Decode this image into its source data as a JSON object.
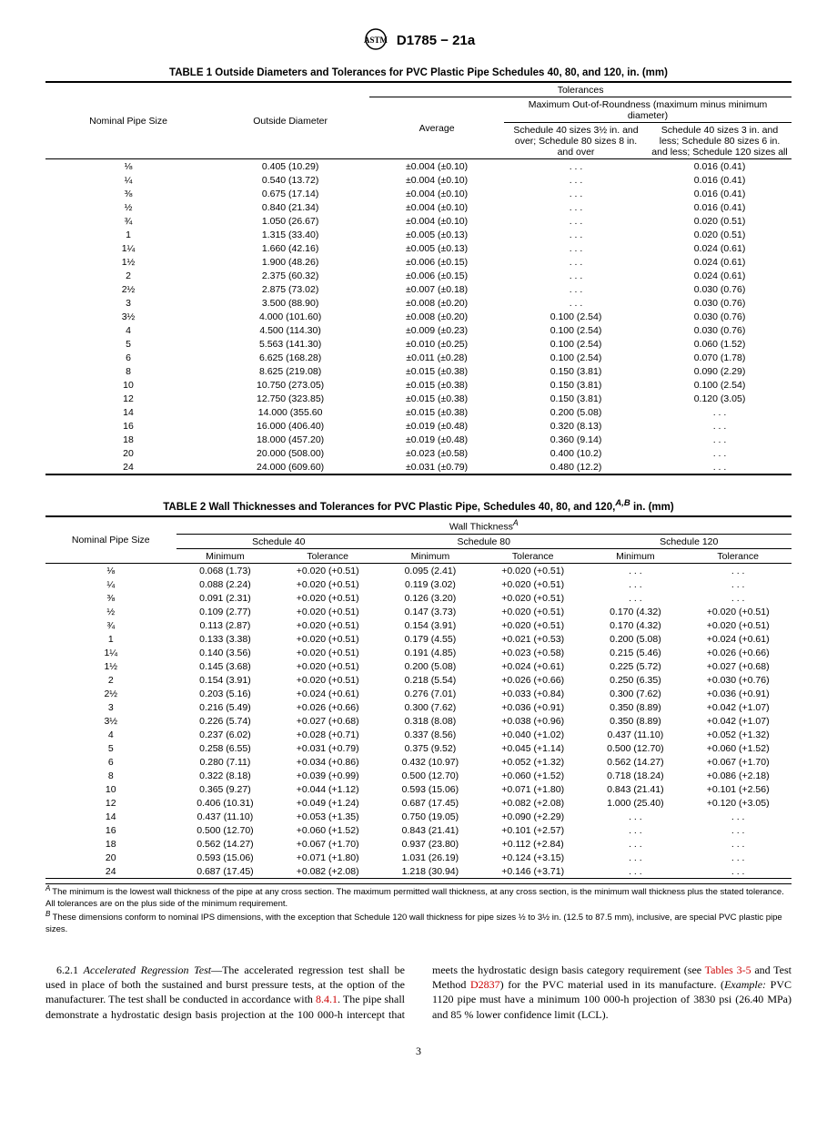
{
  "doc_id": "D1785 − 21a",
  "table1": {
    "title": "TABLE 1 Outside Diameters and Tolerances for PVC Plastic Pipe Schedules 40, 80, and 120, in. (mm)",
    "headers": {
      "c1": "Nominal Pipe Size",
      "c2": "Outside Diameter",
      "tol": "Tolerances",
      "c3": "Average",
      "oor": "Maximum Out-of-Roundness (maximum minus minimum diameter)",
      "c4": "Schedule 40 sizes 3½ in. and over; Schedule 80 sizes 8 in. and over",
      "c5": "Schedule 40 sizes 3 in. and less; Schedule 80 sizes 6 in. and less; Schedule 120 sizes all"
    },
    "rows": [
      [
        "⅛",
        "0.405 (10.29)",
        "±0.004 (±0.10)",
        ". . .",
        "0.016 (0.41)"
      ],
      [
        "¼",
        "0.540 (13.72)",
        "±0.004 (±0.10)",
        ". . .",
        "0.016 (0.41)"
      ],
      [
        "⅜",
        "0.675 (17.14)",
        "±0.004 (±0.10)",
        ". . .",
        "0.016 (0.41)"
      ],
      [
        "½",
        "0.840 (21.34)",
        "±0.004 (±0.10)",
        ". . .",
        "0.016 (0.41)"
      ],
      [
        "¾",
        "1.050 (26.67)",
        "±0.004 (±0.10)",
        ". . .",
        "0.020 (0.51)"
      ],
      [
        "1",
        "1.315 (33.40)",
        "±0.005 (±0.13)",
        ". . .",
        "0.020 (0.51)"
      ],
      [
        "1¼",
        "1.660 (42.16)",
        "±0.005 (±0.13)",
        ". . .",
        "0.024 (0.61)"
      ],
      [
        "1½",
        "1.900 (48.26)",
        "±0.006 (±0.15)",
        ". . .",
        "0.024 (0.61)"
      ],
      [
        "2",
        "2.375 (60.32)",
        "±0.006 (±0.15)",
        ". . .",
        "0.024 (0.61)"
      ],
      [
        "2½",
        "2.875 (73.02)",
        "±0.007 (±0.18)",
        ". . .",
        "0.030 (0.76)"
      ],
      [
        "3",
        "3.500 (88.90)",
        "±0.008 (±0.20)",
        ". . .",
        "0.030 (0.76)"
      ],
      [
        "3½",
        "4.000 (101.60)",
        "±0.008 (±0.20)",
        "0.100 (2.54)",
        "0.030 (0.76)"
      ],
      [
        "4",
        "4.500 (114.30)",
        "±0.009 (±0.23)",
        "0.100 (2.54)",
        "0.030 (0.76)"
      ],
      [
        "5",
        "5.563 (141.30)",
        "±0.010 (±0.25)",
        "0.100 (2.54)",
        "0.060 (1.52)"
      ],
      [
        "6",
        "6.625 (168.28)",
        "±0.011 (±0.28)",
        "0.100 (2.54)",
        "0.070 (1.78)"
      ],
      [
        "8",
        "8.625 (219.08)",
        "±0.015 (±0.38)",
        "0.150 (3.81)",
        "0.090 (2.29)"
      ],
      [
        "10",
        "10.750 (273.05)",
        "±0.015 (±0.38)",
        "0.150 (3.81)",
        "0.100 (2.54)"
      ],
      [
        "12",
        "12.750 (323.85)",
        "±0.015 (±0.38)",
        "0.150 (3.81)",
        "0.120 (3.05)"
      ],
      [
        "14",
        "14.000 (355.60",
        "±0.015 (±0.38)",
        "0.200 (5.08)",
        ". . ."
      ],
      [
        "16",
        "16.000 (406.40)",
        "±0.019 (±0.48)",
        "0.320 (8.13)",
        ". . ."
      ],
      [
        "18",
        "18.000 (457.20)",
        "±0.019 (±0.48)",
        "0.360 (9.14)",
        ". . ."
      ],
      [
        "20",
        "20.000 (508.00)",
        "±0.023 (±0.58)",
        "0.400 (10.2)",
        ". . ."
      ],
      [
        "24",
        "24.000 (609.60)",
        "±0.031 (±0.79)",
        "0.480 (12.2)",
        ". . ."
      ]
    ]
  },
  "table2": {
    "title_pre": "TABLE 2 Wall Thicknesses and Tolerances for PVC Plastic Pipe, Schedules 40, 80, and 120,",
    "title_sup": "A,B",
    "title_post": " in. (mm)",
    "headers": {
      "c1": "Nominal Pipe Size",
      "wt": "Wall Thickness",
      "wt_sup": "A",
      "s40": "Schedule 40",
      "s80": "Schedule 80",
      "s120": "Schedule 120",
      "min": "Minimum",
      "tol": "Tolerance"
    },
    "rows": [
      [
        "⅛",
        "0.068 (1.73)",
        "+0.020 (+0.51)",
        "0.095 (2.41)",
        "+0.020 (+0.51)",
        ". . .",
        ". . ."
      ],
      [
        "¼",
        "0.088 (2.24)",
        "+0.020 (+0.51)",
        "0.119 (3.02)",
        "+0.020 (+0.51)",
        ". . .",
        ". . ."
      ],
      [
        "⅜",
        "0.091 (2.31)",
        "+0.020 (+0.51)",
        "0.126 (3.20)",
        "+0.020 (+0.51)",
        ". . .",
        ". . ."
      ],
      [
        "½",
        "0.109 (2.77)",
        "+0.020 (+0.51)",
        "0.147 (3.73)",
        "+0.020 (+0.51)",
        "0.170 (4.32)",
        "+0.020 (+0.51)"
      ],
      [
        "¾",
        "0.113 (2.87)",
        "+0.020 (+0.51)",
        "0.154 (3.91)",
        "+0.020 (+0.51)",
        "0.170 (4.32)",
        "+0.020 (+0.51)"
      ],
      [
        "1",
        "0.133 (3.38)",
        "+0.020 (+0.51)",
        "0.179 (4.55)",
        "+0.021 (+0.53)",
        "0.200 (5.08)",
        "+0.024 (+0.61)"
      ],
      [
        "1¼",
        "0.140 (3.56)",
        "+0.020 (+0.51)",
        "0.191 (4.85)",
        "+0.023 (+0.58)",
        "0.215 (5.46)",
        "+0.026 (+0.66)"
      ],
      [
        "1½",
        "0.145 (3.68)",
        "+0.020 (+0.51)",
        "0.200 (5.08)",
        "+0.024 (+0.61)",
        "0.225 (5.72)",
        "+0.027 (+0.68)"
      ],
      [
        "2",
        "0.154 (3.91)",
        "+0.020 (+0.51)",
        "0.218 (5.54)",
        "+0.026 (+0.66)",
        "0.250 (6.35)",
        "+0.030 (+0.76)"
      ],
      [
        "2½",
        "0.203 (5.16)",
        "+0.024 (+0.61)",
        "0.276 (7.01)",
        "+0.033 (+0.84)",
        "0.300 (7.62)",
        "+0.036 (+0.91)"
      ],
      [
        "3",
        "0.216 (5.49)",
        "+0.026 (+0.66)",
        "0.300 (7.62)",
        "+0.036 (+0.91)",
        "0.350 (8.89)",
        "+0.042 (+1.07)"
      ],
      [
        "3½",
        "0.226 (5.74)",
        "+0.027 (+0.68)",
        "0.318 (8.08)",
        "+0.038 (+0.96)",
        "0.350 (8.89)",
        "+0.042 (+1.07)"
      ],
      [
        "4",
        "0.237 (6.02)",
        "+0.028 (+0.71)",
        "0.337 (8.56)",
        "+0.040 (+1.02)",
        "0.437 (11.10)",
        "+0.052 (+1.32)"
      ],
      [
        "5",
        "0.258 (6.55)",
        "+0.031 (+0.79)",
        "0.375 (9.52)",
        "+0.045 (+1.14)",
        "0.500 (12.70)",
        "+0.060 (+1.52)"
      ],
      [
        "6",
        "0.280 (7.11)",
        "+0.034 (+0.86)",
        "0.432 (10.97)",
        "+0.052 (+1.32)",
        "0.562 (14.27)",
        "+0.067 (+1.70)"
      ],
      [
        "8",
        "0.322 (8.18)",
        "+0.039 (+0.99)",
        "0.500 (12.70)",
        "+0.060 (+1.52)",
        "0.718 (18.24)",
        "+0.086 (+2.18)"
      ],
      [
        "10",
        "0.365 (9.27)",
        "+0.044 (+1.12)",
        "0.593 (15.06)",
        "+0.071 (+1.80)",
        "0.843 (21.41)",
        "+0.101 (+2.56)"
      ],
      [
        "12",
        "0.406 (10.31)",
        "+0.049 (+1.24)",
        "0.687 (17.45)",
        "+0.082 (+2.08)",
        "1.000 (25.40)",
        "+0.120 (+3.05)"
      ],
      [
        "14",
        "0.437 (11.10)",
        "+0.053 (+1.35)",
        "0.750 (19.05)",
        "+0.090 (+2.29)",
        ". . .",
        ". . ."
      ],
      [
        "16",
        "0.500 (12.70)",
        "+0.060 (+1.52)",
        "0.843 (21.41)",
        "+0.101 (+2.57)",
        ". . .",
        ". . ."
      ],
      [
        "18",
        "0.562 (14.27)",
        "+0.067 (+1.70)",
        "0.937 (23.80)",
        "+0.112 (+2.84)",
        ". . .",
        ". . ."
      ],
      [
        "20",
        "0.593 (15.06)",
        "+0.071 (+1.80)",
        "1.031 (26.19)",
        "+0.124 (+3.15)",
        ". . .",
        ". . ."
      ],
      [
        "24",
        "0.687 (17.45)",
        "+0.082 (+2.08)",
        "1.218 (30.94)",
        "+0.146 (+3.71)",
        ". . .",
        ". . ."
      ]
    ],
    "footnotes": {
      "A": "The minimum is the lowest wall thickness of the pipe at any cross section. The maximum permitted wall thickness, at any cross section, is the minimum wall thickness plus the stated tolerance. All tolerances are on the plus side of the minimum requirement.",
      "B": "These dimensions conform to nominal IPS dimensions, with the exception that Schedule 120 wall thickness for pipe sizes ½ to 3½ in. (12.5 to 87.5 mm), inclusive, are special PVC plastic pipe sizes."
    }
  },
  "body": {
    "section_num": "6.2.1",
    "section_title": "Accelerated Regression Test",
    "p1a": "—The accelerated regression test shall be used in place of both the sustained and burst pressure tests, at the option of the manufacturer. The test shall be conducted in accordance with ",
    "link1": "8.4.1",
    "p1b": ". The pipe shall demonstrate a hydrostatic design basis projection at the 100 000-h",
    "p2a": "intercept that meets the hydrostatic design basis category requirement (see ",
    "link2": "Tables 3-5",
    "p2b": " and Test Method ",
    "link3": "D2837",
    "p2c": ") for the PVC material used in its manufacture. (",
    "example": "Example:",
    "p2d": " PVC 1120 pipe must have a minimum 100 000-h projection of 3830 psi (26.40 MPa) and 85 % lower confidence limit (LCL)."
  },
  "page": "3"
}
